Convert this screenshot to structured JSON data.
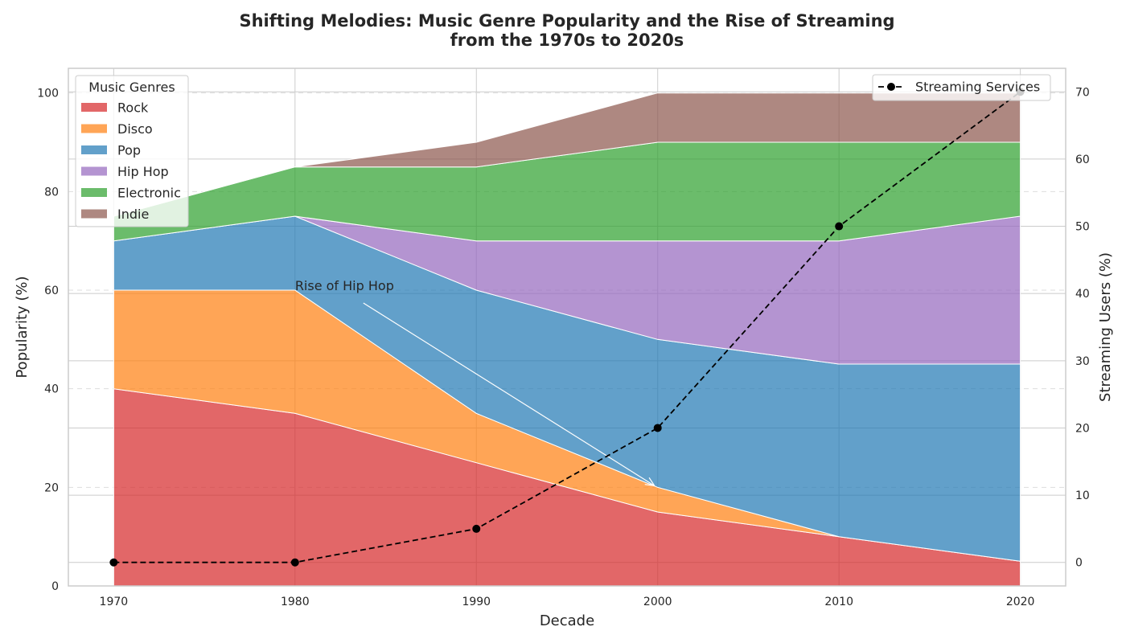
{
  "chart_data": {
    "type": "area",
    "title_lines": [
      "Shifting Melodies: Music Genre Popularity and the Rise of Streaming",
      "from the 1970s to 2020s"
    ],
    "xlabel": "Decade",
    "ylabel": "Popularity (%)",
    "y2label": "Streaming Users (%)",
    "x": [
      1970,
      1980,
      1990,
      2000,
      2010,
      2020
    ],
    "xlim": [
      1967.5,
      2022.5
    ],
    "ylim": [
      0,
      105
    ],
    "y2lim": [
      -3.5,
      73.5
    ],
    "yticks": [
      0,
      20,
      40,
      60,
      80,
      100
    ],
    "y2ticks": [
      0,
      10,
      20,
      30,
      40,
      50,
      60,
      70
    ],
    "stacked": true,
    "series": [
      {
        "name": "Rock",
        "color": "#d62728",
        "values": [
          40,
          35,
          25,
          15,
          10,
          5
        ]
      },
      {
        "name": "Disco",
        "color": "#ff7f0e",
        "values": [
          20,
          25,
          10,
          5,
          0,
          0
        ]
      },
      {
        "name": "Pop",
        "color": "#1f77b4",
        "values": [
          10,
          15,
          25,
          30,
          35,
          40
        ]
      },
      {
        "name": "Hip Hop",
        "color": "#9467bd",
        "values": [
          0,
          0,
          10,
          20,
          25,
          30
        ]
      },
      {
        "name": "Electronic",
        "color": "#2ca02c",
        "values": [
          5,
          10,
          15,
          20,
          20,
          15
        ]
      },
      {
        "name": "Indie",
        "color": "#8c564b",
        "values": [
          0,
          0,
          5,
          10,
          10,
          10
        ]
      }
    ],
    "line_series": {
      "name": "Streaming Services",
      "axis": "right",
      "color": "#000000",
      "style": "dashed",
      "marker": "circle",
      "values": [
        0,
        0,
        5,
        20,
        50,
        70
      ]
    },
    "legend_title": "Music Genres",
    "legend_position": "upper-left",
    "line_legend_position": "upper-right",
    "annotation": {
      "text": "Rise of Hip Hop",
      "text_x": 1980,
      "text_y": 60,
      "arrow_x": 2000,
      "arrow_y": 20
    },
    "grid": true
  }
}
